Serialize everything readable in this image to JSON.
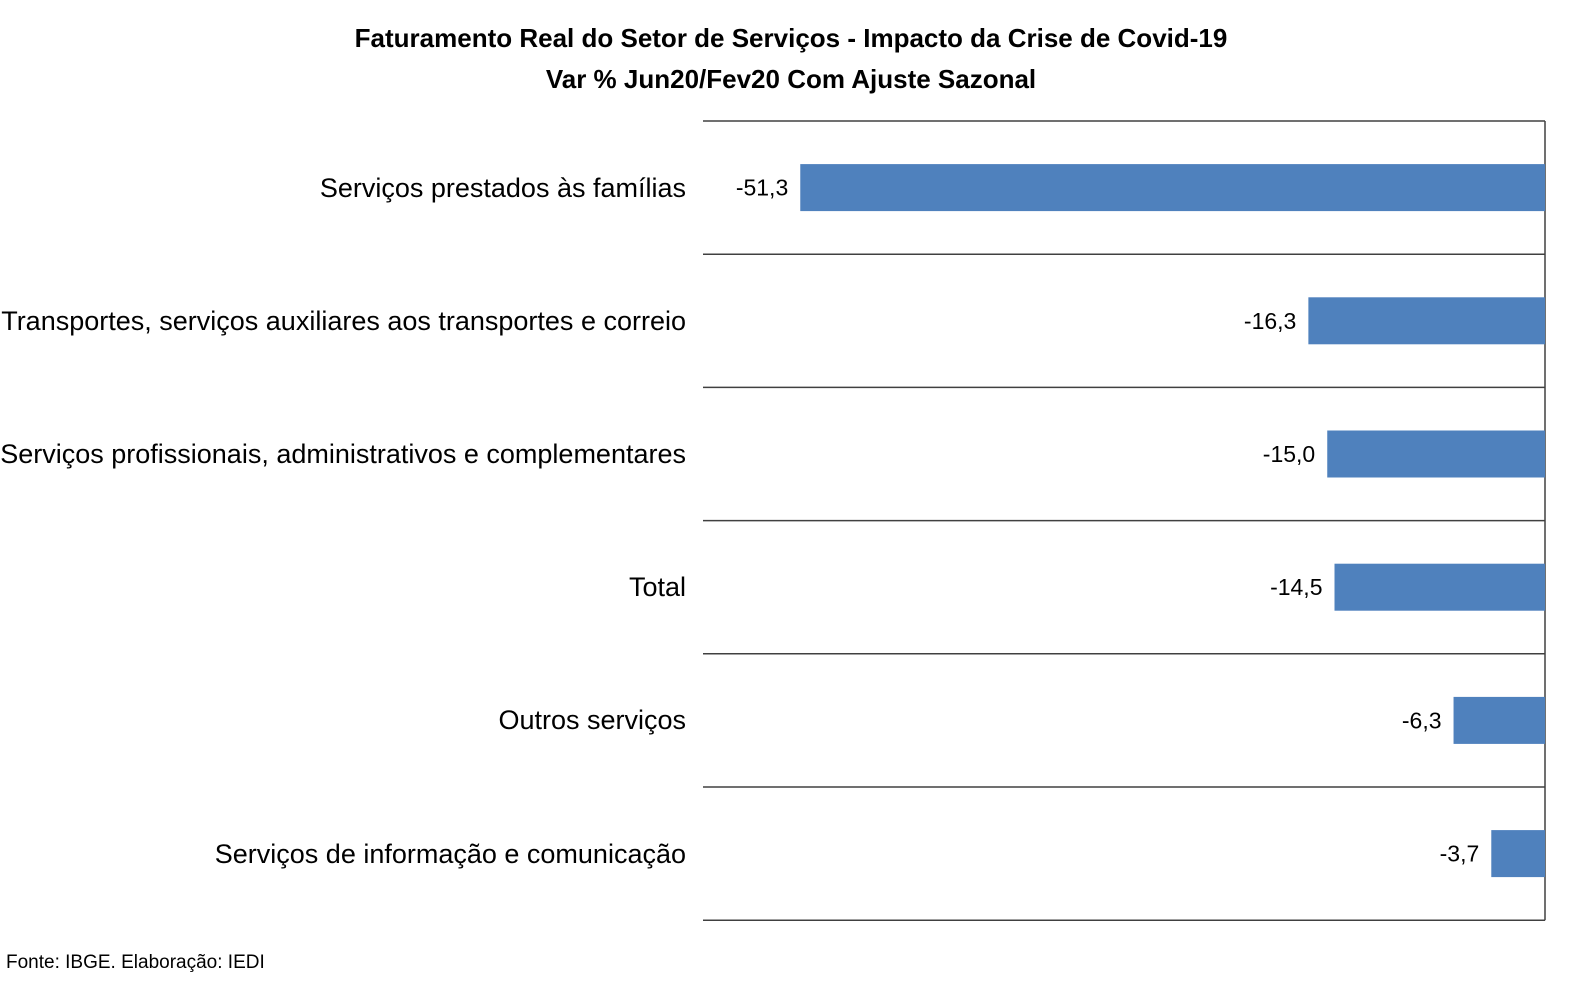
{
  "chart_data": {
    "type": "bar",
    "orientation": "horizontal",
    "title": "Faturamento Real do Setor de Serviços - Impacto da Crise de Covid-19",
    "subtitle": "Var % Jun20/Fev20 Com Ajuste Sazonal",
    "categories": [
      "Serviços prestados às famílias",
      "Transportes, serviços auxiliares aos transportes e correio",
      "Serviços profissionais, administrativos e complementares",
      "Total",
      "Outros serviços",
      "Serviços de informação e comunicação"
    ],
    "values": [
      -51.3,
      -16.3,
      -15.0,
      -14.5,
      -6.3,
      -3.7
    ],
    "data_labels": [
      "-51,3",
      "-16,3",
      "-15,0",
      "-14,5",
      "-6,3",
      "-3,7"
    ],
    "xlim": [
      -58,
      0
    ],
    "grid": true,
    "legend": "none",
    "bar_color": "#4F81BD"
  },
  "footer": {
    "source": "Fonte: IBGE. Elaboração: IEDI"
  }
}
